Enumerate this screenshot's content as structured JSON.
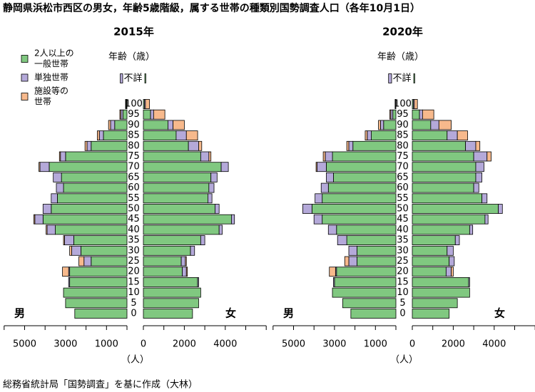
{
  "title": "静岡県浜松市西区の男女，年齢5歳階級，属する世帯の種類別国勢調査人口（各年10月1日）",
  "source": "総務省統計局「国勢調査」を基に作成（大林）",
  "legend": [
    {
      "name": [
        "2人以上の",
        "一般世帯"
      ],
      "color": "#80c880"
    },
    {
      "name": [
        "単独世帯"
      ],
      "color": "#b4a9d9"
    },
    {
      "name": [
        "施設等の",
        "世帯"
      ],
      "color": "#f7b98c"
    }
  ],
  "chart_data": [
    {
      "type": "pyramid",
      "title": "2015年",
      "age_label": "年齢（歳）",
      "left_label": "男",
      "right_label": "女",
      "x_unit": "（人）",
      "categories": [
        "不詳",
        "0",
        "5",
        "10",
        "15",
        "20",
        "25",
        "30",
        "35",
        "40",
        "45",
        "50",
        "55",
        "60",
        "65",
        "70",
        "75",
        "80",
        "85",
        "90",
        "95",
        "100"
      ],
      "xlim": [
        0,
        6000
      ],
      "left_xticks": [
        1000,
        3000,
        5000
      ],
      "left_minor_xticks": [
        0,
        2000,
        4000,
        6000
      ],
      "right_xticks": [
        0,
        2000,
        4000
      ],
      "right_minor_xticks": [
        1000,
        3000,
        5000,
        6000
      ],
      "left_values": [
        [
          0,
          2550,
          3000,
          3100,
          2800,
          2800,
          1750,
          2250,
          2600,
          3500,
          4100,
          3700,
          3400,
          3100,
          3200,
          3800,
          3000,
          1750,
          1150,
          600,
          200,
          30
        ],
        [
          120,
          0,
          0,
          0,
          50,
          50,
          350,
          450,
          450,
          400,
          400,
          400,
          300,
          350,
          400,
          450,
          250,
          200,
          200,
          200,
          100,
          20
        ],
        [
          0,
          0,
          0,
          0,
          0,
          300,
          250,
          100,
          50,
          50,
          50,
          0,
          0,
          0,
          0,
          50,
          50,
          100,
          100,
          100,
          50,
          20
        ]
      ],
      "right_values": [
        [
          50,
          2400,
          2700,
          2800,
          2650,
          1900,
          1850,
          2300,
          2800,
          3700,
          4300,
          3500,
          3150,
          3200,
          3300,
          3800,
          2800,
          2200,
          1600,
          1200,
          350,
          50
        ],
        [
          0,
          0,
          0,
          0,
          50,
          200,
          200,
          200,
          200,
          150,
          150,
          200,
          200,
          250,
          300,
          350,
          400,
          500,
          500,
          250,
          150,
          50
        ],
        [
          0,
          0,
          0,
          0,
          0,
          50,
          50,
          0,
          0,
          0,
          0,
          0,
          0,
          0,
          0,
          0,
          100,
          150,
          550,
          550,
          550,
          200
        ]
      ]
    },
    {
      "type": "pyramid",
      "title": "2020年",
      "age_label": "年齢（歳）",
      "left_label": "男",
      "right_label": "女",
      "x_unit": "（人）",
      "categories": [
        "不詳",
        "0",
        "5",
        "10",
        "15",
        "20",
        "25",
        "30",
        "35",
        "40",
        "45",
        "50",
        "55",
        "60",
        "65",
        "70",
        "75",
        "80",
        "85",
        "90",
        "95",
        "100"
      ],
      "xlim": [
        0,
        6000
      ],
      "left_xticks": [
        1000,
        3000,
        5000
      ],
      "left_minor_xticks": [
        0,
        2000,
        4000,
        6000
      ],
      "right_xticks": [
        0,
        2000,
        4000
      ],
      "right_minor_xticks": [
        1000,
        3000,
        5000,
        6000
      ],
      "left_values": [
        [
          0,
          2200,
          2600,
          3100,
          3000,
          2900,
          1900,
          1900,
          2400,
          2900,
          3600,
          4100,
          3600,
          3300,
          3050,
          3400,
          3100,
          2100,
          1200,
          600,
          150,
          20
        ],
        [
          150,
          0,
          0,
          0,
          50,
          50,
          400,
          400,
          450,
          400,
          400,
          450,
          350,
          350,
          350,
          450,
          350,
          200,
          200,
          150,
          100,
          10
        ],
        [
          0,
          0,
          0,
          0,
          0,
          300,
          200,
          0,
          0,
          0,
          0,
          0,
          0,
          0,
          0,
          50,
          100,
          100,
          100,
          100,
          50,
          10
        ]
      ],
      "right_values": [
        [
          50,
          1800,
          2200,
          2800,
          2750,
          1650,
          1800,
          1700,
          2100,
          2800,
          3550,
          4200,
          3400,
          3000,
          3100,
          3100,
          3000,
          2600,
          1700,
          900,
          350,
          50
        ],
        [
          0,
          0,
          0,
          0,
          50,
          250,
          250,
          300,
          200,
          150,
          150,
          200,
          250,
          250,
          300,
          400,
          650,
          500,
          500,
          400,
          150,
          50
        ],
        [
          0,
          0,
          0,
          0,
          0,
          100,
          0,
          0,
          0,
          0,
          0,
          0,
          0,
          0,
          0,
          0,
          200,
          200,
          500,
          600,
          550,
          150
        ]
      ]
    }
  ]
}
